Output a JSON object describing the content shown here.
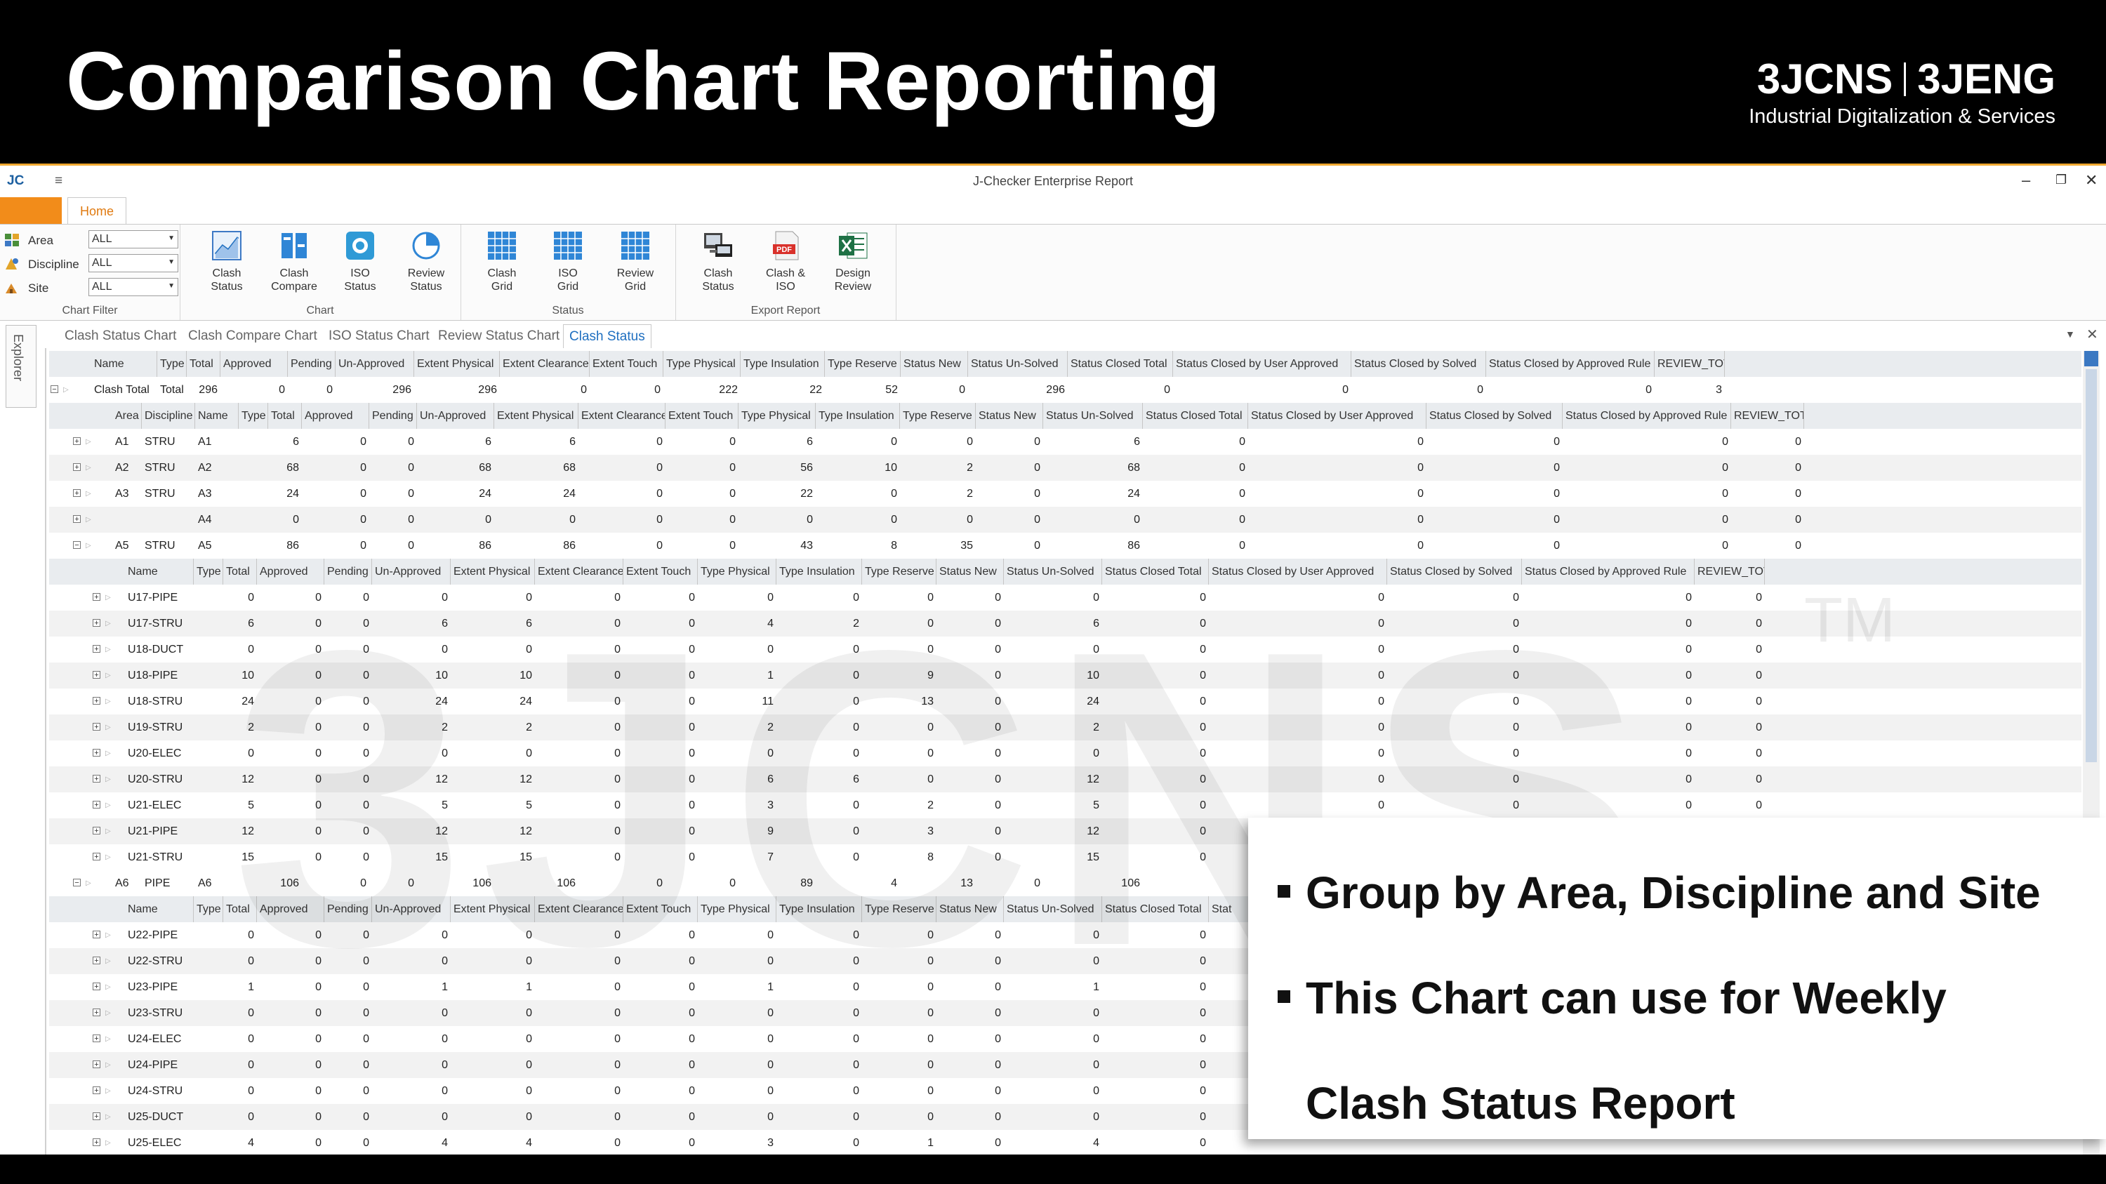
{
  "slide": {
    "title": "Comparison Chart Reporting",
    "brand_left": "3JCNS",
    "brand_right": "3JENG",
    "brand_sub": "Industrial Digitalization & Services"
  },
  "window": {
    "title": "J-Checker Enterprise Report",
    "qat_logo": "JC",
    "qat_menu": "≡"
  },
  "ribbon": {
    "home_tab": "Home",
    "filters": [
      {
        "label": "Area",
        "value": "ALL"
      },
      {
        "label": "Discipline",
        "value": "ALL"
      },
      {
        "label": "Site",
        "value": "ALL"
      }
    ],
    "group_filter": "Chart Filter",
    "group_chart": "Chart",
    "group_status": "Status",
    "group_export": "Export Report",
    "chart_buttons": [
      {
        "line1": "Clash",
        "line2": "Status",
        "icon": "line-chart-icon"
      },
      {
        "line1": "Clash",
        "line2": "Compare",
        "icon": "compare-chart-icon"
      },
      {
        "line1": "ISO",
        "line2": "Status",
        "icon": "iso-chart-icon"
      },
      {
        "line1": "Review",
        "line2": "Status",
        "icon": "pie-chart-icon"
      }
    ],
    "status_buttons": [
      {
        "line1": "Clash",
        "line2": "Grid",
        "icon": "grid-icon"
      },
      {
        "line1": "ISO",
        "line2": "Grid",
        "icon": "grid-icon"
      },
      {
        "line1": "Review",
        "line2": "Grid",
        "icon": "grid-icon"
      }
    ],
    "export_buttons": [
      {
        "line1": "Clash",
        "line2": "Status",
        "icon": "computer-export-icon"
      },
      {
        "line1": "Clash &",
        "line2": "ISO",
        "icon": "pdf-icon"
      },
      {
        "line1": "Design",
        "line2": "Review",
        "icon": "excel-icon"
      }
    ]
  },
  "explorer_label": "Explorer",
  "doc_tabs": [
    "Clash Status Chart",
    "Clash Compare Chart",
    "ISO Status Chart",
    "Review Status Chart",
    "Clash Status"
  ],
  "grid": {
    "top_headers": [
      "Name",
      "Type",
      "Total",
      "Approved",
      "Pending",
      "Un-Approved",
      "Extent Physical",
      "Extent Clearance",
      "Extent Touch",
      "Type Physical",
      "Type Insulation",
      "Type Reserve",
      "Status New",
      "Status Un-Solved",
      "Status Closed Total",
      "Status Closed by User Approved",
      "Status Closed by Solved",
      "Status Closed by Approved Rule",
      "REVIEW_TOT"
    ],
    "top_row": [
      "Clash Total",
      "Total",
      "296",
      "0",
      "0",
      "296",
      "296",
      "0",
      "0",
      "222",
      "22",
      "52",
      "0",
      "296",
      "0",
      "0",
      "0",
      "0",
      "3"
    ],
    "area_headers": [
      "Area",
      "Discipline",
      "Name",
      "Type",
      "Total",
      "Approved",
      "Pending",
      "Un-Approved",
      "Extent Physical",
      "Extent Clearance",
      "Extent Touch",
      "Type Physical",
      "Type Insulation",
      "Type Reserve",
      "Status New",
      "Status Un-Solved",
      "Status Closed Total",
      "Status Closed by User Approved",
      "Status Closed by Solved",
      "Status Closed by Approved Rule",
      "REVIEW_TOT"
    ],
    "area_rows_a": [
      [
        "A1",
        "STRU",
        "A1",
        "",
        "6",
        "0",
        "0",
        "6",
        "6",
        "0",
        "0",
        "6",
        "0",
        "0",
        "0",
        "6",
        "0",
        "0",
        "0",
        "0",
        "0"
      ],
      [
        "A2",
        "STRU",
        "A2",
        "",
        "68",
        "0",
        "0",
        "68",
        "68",
        "0",
        "0",
        "56",
        "10",
        "2",
        "0",
        "68",
        "0",
        "0",
        "0",
        "0",
        "0"
      ],
      [
        "A3",
        "STRU",
        "A3",
        "",
        "24",
        "0",
        "0",
        "24",
        "24",
        "0",
        "0",
        "22",
        "0",
        "2",
        "0",
        "24",
        "0",
        "0",
        "0",
        "0",
        "0"
      ],
      [
        "",
        "",
        "A4",
        "",
        "0",
        "0",
        "0",
        "0",
        "0",
        "0",
        "0",
        "0",
        "0",
        "0",
        "0",
        "0",
        "0",
        "0",
        "0",
        "0",
        "0"
      ],
      [
        "A5",
        "STRU",
        "A5",
        "",
        "86",
        "0",
        "0",
        "86",
        "86",
        "0",
        "0",
        "43",
        "8",
        "35",
        "0",
        "86",
        "0",
        "0",
        "0",
        "0",
        "0"
      ]
    ],
    "sub_headers": [
      "Name",
      "Type",
      "Total",
      "Approved",
      "Pending",
      "Un-Approved",
      "Extent Physical",
      "Extent Clearance",
      "Extent Touch",
      "Type Physical",
      "Type Insulation",
      "Type Reserve",
      "Status New",
      "Status Un-Solved",
      "Status Closed Total",
      "Status Closed by User Approved",
      "Status Closed by Solved",
      "Status Closed by Approved Rule",
      "REVIEW_TOT"
    ],
    "sub_headers_b": [
      "Name",
      "Type",
      "Total",
      "Approved",
      "Pending",
      "Un-Approved",
      "Extent Physical",
      "Extent Clearance",
      "Extent Touch",
      "Type Physical",
      "Type Insulation",
      "Type Reserve",
      "Status New",
      "Status Un-Solved",
      "Status Closed Total",
      "Stat"
    ],
    "a5_rows": [
      [
        "U17-PIPE",
        "",
        "0",
        "0",
        "0",
        "0",
        "0",
        "0",
        "0",
        "0",
        "0",
        "0",
        "0",
        "0",
        "0",
        "0",
        "0",
        "0",
        "0"
      ],
      [
        "U17-STRU",
        "",
        "6",
        "0",
        "0",
        "6",
        "6",
        "0",
        "0",
        "4",
        "2",
        "0",
        "0",
        "6",
        "0",
        "0",
        "0",
        "0",
        "0"
      ],
      [
        "U18-DUCT",
        "",
        "0",
        "0",
        "0",
        "0",
        "0",
        "0",
        "0",
        "0",
        "0",
        "0",
        "0",
        "0",
        "0",
        "0",
        "0",
        "0",
        "0"
      ],
      [
        "U18-PIPE",
        "",
        "10",
        "0",
        "0",
        "10",
        "10",
        "0",
        "0",
        "1",
        "0",
        "9",
        "0",
        "10",
        "0",
        "0",
        "0",
        "0",
        "0"
      ],
      [
        "U18-STRU",
        "",
        "24",
        "0",
        "0",
        "24",
        "24",
        "0",
        "0",
        "11",
        "0",
        "13",
        "0",
        "24",
        "0",
        "0",
        "0",
        "0",
        "0"
      ],
      [
        "U19-STRU",
        "",
        "2",
        "0",
        "0",
        "2",
        "2",
        "0",
        "0",
        "2",
        "0",
        "0",
        "0",
        "2",
        "0",
        "0",
        "0",
        "0",
        "0"
      ],
      [
        "U20-ELEC",
        "",
        "0",
        "0",
        "0",
        "0",
        "0",
        "0",
        "0",
        "0",
        "0",
        "0",
        "0",
        "0",
        "0",
        "0",
        "0",
        "0",
        "0"
      ],
      [
        "U20-STRU",
        "",
        "12",
        "0",
        "0",
        "12",
        "12",
        "0",
        "0",
        "6",
        "6",
        "0",
        "0",
        "12",
        "0",
        "0",
        "0",
        "0",
        "0"
      ],
      [
        "U21-ELEC",
        "",
        "5",
        "0",
        "0",
        "5",
        "5",
        "0",
        "0",
        "3",
        "0",
        "2",
        "0",
        "5",
        "0",
        "0",
        "0",
        "0",
        "0"
      ],
      [
        "U21-PIPE",
        "",
        "12",
        "0",
        "0",
        "12",
        "12",
        "0",
        "0",
        "9",
        "0",
        "3",
        "0",
        "12",
        "0",
        "",
        "",
        "",
        ""
      ],
      [
        "U21-STRU",
        "",
        "15",
        "0",
        "0",
        "15",
        "15",
        "0",
        "0",
        "7",
        "0",
        "8",
        "0",
        "15",
        "0",
        "",
        "",
        "",
        ""
      ]
    ],
    "area_row_a6": [
      "A6",
      "PIPE",
      "A6",
      "",
      "106",
      "0",
      "0",
      "106",
      "106",
      "0",
      "0",
      "89",
      "4",
      "13",
      "0",
      "106",
      "",
      "",
      "",
      "",
      ""
    ],
    "a6_rows": [
      [
        "U22-PIPE",
        "",
        "0",
        "0",
        "0",
        "0",
        "0",
        "0",
        "0",
        "0",
        "0",
        "0",
        "0",
        "0",
        "0"
      ],
      [
        "U22-STRU",
        "",
        "0",
        "0",
        "0",
        "0",
        "0",
        "0",
        "0",
        "0",
        "0",
        "0",
        "0",
        "0",
        "0"
      ],
      [
        "U23-PIPE",
        "",
        "1",
        "0",
        "0",
        "1",
        "1",
        "0",
        "0",
        "1",
        "0",
        "0",
        "0",
        "1",
        "0"
      ],
      [
        "U23-STRU",
        "",
        "0",
        "0",
        "0",
        "0",
        "0",
        "0",
        "0",
        "0",
        "0",
        "0",
        "0",
        "0",
        "0"
      ],
      [
        "U24-ELEC",
        "",
        "0",
        "0",
        "0",
        "0",
        "0",
        "0",
        "0",
        "0",
        "0",
        "0",
        "0",
        "0",
        "0"
      ],
      [
        "U24-PIPE",
        "",
        "0",
        "0",
        "0",
        "0",
        "0",
        "0",
        "0",
        "0",
        "0",
        "0",
        "0",
        "0",
        "0"
      ],
      [
        "U24-STRU",
        "",
        "0",
        "0",
        "0",
        "0",
        "0",
        "0",
        "0",
        "0",
        "0",
        "0",
        "0",
        "0",
        "0"
      ],
      [
        "U25-DUCT",
        "",
        "0",
        "0",
        "0",
        "0",
        "0",
        "0",
        "0",
        "0",
        "0",
        "0",
        "0",
        "0",
        "0"
      ],
      [
        "U25-ELEC",
        "",
        "4",
        "0",
        "0",
        "4",
        "4",
        "0",
        "0",
        "3",
        "0",
        "1",
        "0",
        "4",
        "0"
      ]
    ]
  },
  "callout": {
    "bullets": [
      "Group by Area, Discipline and Site",
      "This Chart can use for Weekly",
      "Clash Status Report"
    ]
  },
  "watermark": {
    "text": "3JCNS",
    "tm": "TM"
  },
  "colors": {
    "accent_orange": "#f28c1a",
    "active_tab_blue": "#1f6fc0",
    "header_bg": "#000000"
  }
}
